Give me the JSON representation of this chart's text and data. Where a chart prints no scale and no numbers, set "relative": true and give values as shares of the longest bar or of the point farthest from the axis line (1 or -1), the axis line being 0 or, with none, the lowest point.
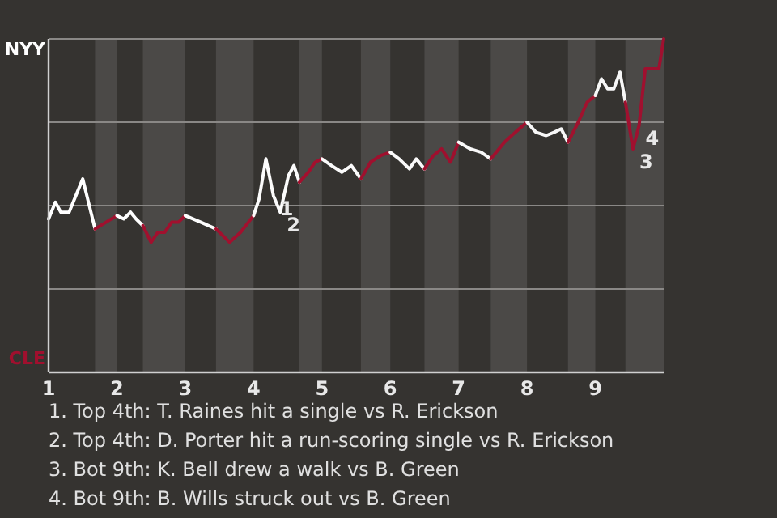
{
  "chart_data": {
    "type": "line",
    "relative": true,
    "marker": "none",
    "line_style": "solid",
    "xlim": [
      1,
      10
    ],
    "xticks": [
      1,
      2,
      3,
      4,
      5,
      6,
      7,
      8,
      9
    ],
    "series": [
      {
        "name": "NYY",
        "color": "#ffffff",
        "x": [
          1,
          1.1,
          1.18,
          1.3,
          1.5,
          1.68
        ],
        "values": [
          0.46,
          0.51,
          0.48,
          0.48,
          0.58,
          0.43
        ]
      },
      {
        "name": "CLE",
        "color": "#a0102e",
        "x": [
          1.68,
          2
        ],
        "values": [
          0.43,
          0.47
        ]
      },
      {
        "color": "#fefefe",
        "x": [
          2,
          2.1,
          2.2,
          2.28,
          2.38
        ],
        "values": [
          0.47,
          0.46,
          0.48,
          0.46,
          0.44
        ]
      },
      {
        "color": "#a1102e",
        "x": [
          2.38,
          2.5,
          2.6,
          2.7,
          2.8,
          2.9,
          3
        ],
        "values": [
          0.44,
          0.39,
          0.42,
          0.42,
          0.45,
          0.45,
          0.47
        ]
      },
      {
        "color": "#fdfdfd",
        "x": [
          3,
          3.23,
          3.45
        ],
        "values": [
          0.47,
          0.45,
          0.43
        ]
      },
      {
        "color": "#a2102e",
        "x": [
          3.45,
          3.65,
          3.81,
          4
        ],
        "values": [
          0.43,
          0.39,
          0.42,
          0.47
        ]
      },
      {
        "color": "#fcfcfc",
        "x": [
          4,
          4.08,
          4.18,
          4.29,
          4.39,
          4.51,
          4.59,
          4.67
        ],
        "values": [
          0.47,
          0.52,
          0.64,
          0.53,
          0.48,
          0.59,
          0.62,
          0.57
        ]
      },
      {
        "color": "#a3102e",
        "x": [
          4.67,
          4.8,
          4.9,
          5
        ],
        "values": [
          0.57,
          0.6,
          0.63,
          0.64
        ]
      },
      {
        "color": "#fbfbfb",
        "x": [
          5,
          5.14,
          5.29,
          5.43,
          5.57
        ],
        "values": [
          0.64,
          0.62,
          0.6,
          0.62,
          0.58
        ]
      },
      {
        "color": "#9f102e",
        "x": [
          5.57,
          5.71,
          5.86,
          6
        ],
        "values": [
          0.58,
          0.63,
          0.65,
          0.66
        ]
      },
      {
        "color": "#fafafa",
        "x": [
          6,
          6.13,
          6.28,
          6.38,
          6.5
        ],
        "values": [
          0.66,
          0.64,
          0.61,
          0.64,
          0.61
        ]
      },
      {
        "color": "#9e102e",
        "x": [
          6.5,
          6.63,
          6.75,
          6.88,
          7
        ],
        "values": [
          0.61,
          0.65,
          0.67,
          0.63,
          0.69
        ]
      },
      {
        "color": "#f9f9f9",
        "x": [
          7,
          7.17,
          7.33,
          7.47
        ],
        "values": [
          0.69,
          0.67,
          0.66,
          0.64
        ]
      },
      {
        "color": "#a0112e",
        "x": [
          7.47,
          7.67,
          7.83,
          8
        ],
        "values": [
          0.64,
          0.69,
          0.72,
          0.75
        ]
      },
      {
        "color": "#f8f8f8",
        "x": [
          8,
          8.13,
          8.28,
          8.4,
          8.5,
          8.6
        ],
        "values": [
          0.75,
          0.72,
          0.71,
          0.72,
          0.73,
          0.69
        ]
      },
      {
        "color": "#a0122e",
        "x": [
          8.6,
          8.75,
          8.88,
          9
        ],
        "values": [
          0.69,
          0.75,
          0.81,
          0.83
        ]
      },
      {
        "color": "#f7f7f7",
        "x": [
          9,
          9.09,
          9.18,
          9.27,
          9.36,
          9.44
        ],
        "values": [
          0.83,
          0.88,
          0.85,
          0.85,
          0.9,
          0.81
        ]
      },
      {
        "color": "#a0102f",
        "x": [
          9.44,
          9.55,
          9.64,
          9.73,
          9.93,
          10
        ],
        "values": [
          0.81,
          0.67,
          0.74,
          0.91,
          0.91,
          1
        ]
      }
    ],
    "ref_lines": [
      {
        "axis": "y",
        "value": 0.25,
        "color": "#8a8886"
      },
      {
        "axis": "y",
        "value": 0.5,
        "color": "#8a8886"
      },
      {
        "axis": "y",
        "value": 0.75,
        "color": "#8a8886"
      },
      {
        "axis": "y",
        "value": 1,
        "color": "#8a8886"
      }
    ],
    "bands": [
      {
        "axis": "x",
        "from": 1.68,
        "to": 2,
        "color": "#4b4947"
      },
      {
        "axis": "x",
        "from": 2.38,
        "to": 3,
        "color": "#4b4947"
      },
      {
        "axis": "x",
        "from": 3.45,
        "to": 4,
        "color": "#4b4947"
      },
      {
        "axis": "x",
        "from": 4.67,
        "to": 5,
        "color": "#4b4947"
      },
      {
        "axis": "x",
        "from": 5.57,
        "to": 6,
        "color": "#4b4947"
      },
      {
        "axis": "x",
        "from": 6.5,
        "to": 7,
        "color": "#4b4947"
      },
      {
        "axis": "x",
        "from": 7.47,
        "to": 8,
        "color": "#4b4947"
      },
      {
        "axis": "x",
        "from": 8.6,
        "to": 9,
        "color": "#4b4947"
      },
      {
        "axis": "x",
        "from": 9.44,
        "to": 10,
        "color": "#4b4947"
      }
    ],
    "annotations": [
      {
        "text": "1",
        "x": 4.29,
        "y": 0.53
      },
      {
        "text": "2",
        "x": 4.39,
        "y": 0.48
      },
      {
        "text": "3",
        "x": 9.55,
        "y": 0.67
      },
      {
        "text": "4",
        "x": 9.64,
        "y": 0.74
      },
      "1. Top 4th: T. Raines hit a single vs R. Erickson",
      "2. Top 4th: D. Porter hit a run-scoring single vs R. Erickson",
      "3. Bot 9th: K. Bell drew a walk vs B. Green",
      "4. Bot 9th: B. Wills struck out vs B. Green"
    ]
  }
}
